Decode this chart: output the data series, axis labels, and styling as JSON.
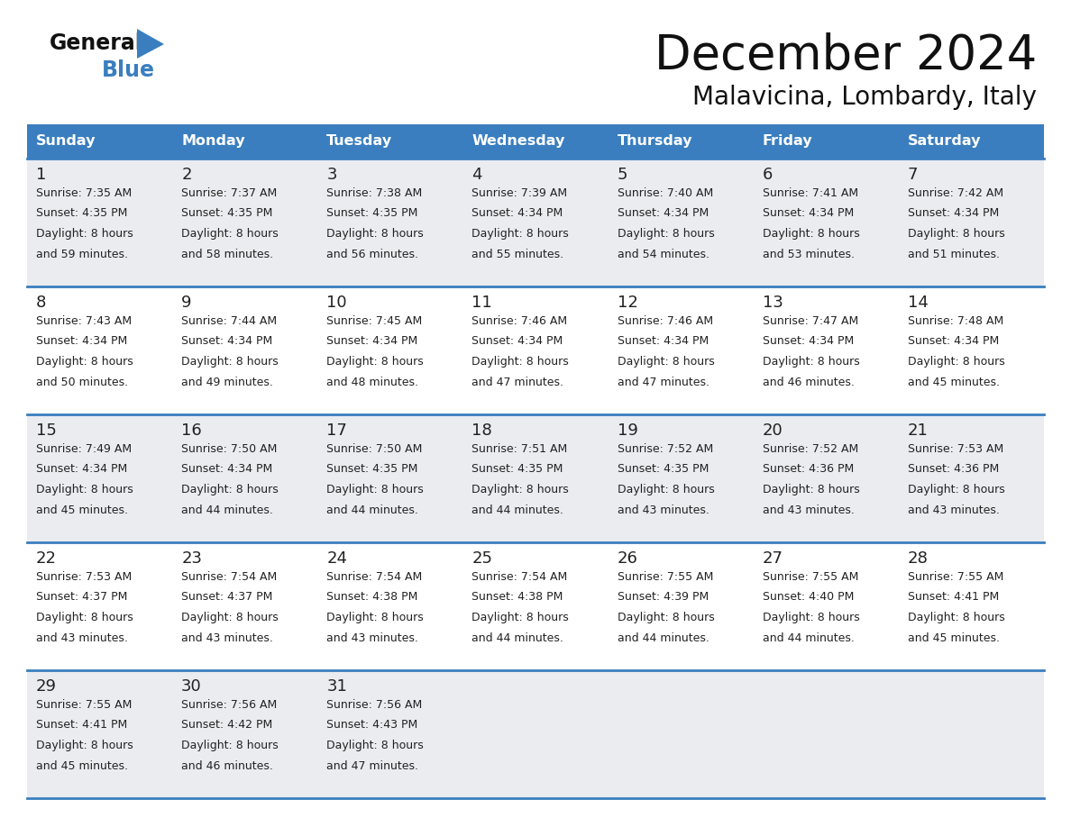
{
  "title": "December 2024",
  "subtitle": "Malavicina, Lombardy, Italy",
  "header_bg": "#3A7EBF",
  "header_text_color": "#FFFFFF",
  "days_of_week": [
    "Sunday",
    "Monday",
    "Tuesday",
    "Wednesday",
    "Thursday",
    "Friday",
    "Saturday"
  ],
  "row_bg_odd": "#EAECF0",
  "row_bg_even": "#FFFFFF",
  "border_color": "#3A7EBF",
  "text_color": "#222222",
  "day_num_color": "#222222",
  "calendar_data": [
    [
      {
        "day": 1,
        "sunrise": "7:35 AM",
        "sunset": "4:35 PM",
        "dl_extra": "59 minutes."
      },
      {
        "day": 2,
        "sunrise": "7:37 AM",
        "sunset": "4:35 PM",
        "dl_extra": "58 minutes."
      },
      {
        "day": 3,
        "sunrise": "7:38 AM",
        "sunset": "4:35 PM",
        "dl_extra": "56 minutes."
      },
      {
        "day": 4,
        "sunrise": "7:39 AM",
        "sunset": "4:34 PM",
        "dl_extra": "55 minutes."
      },
      {
        "day": 5,
        "sunrise": "7:40 AM",
        "sunset": "4:34 PM",
        "dl_extra": "54 minutes."
      },
      {
        "day": 6,
        "sunrise": "7:41 AM",
        "sunset": "4:34 PM",
        "dl_extra": "53 minutes."
      },
      {
        "day": 7,
        "sunrise": "7:42 AM",
        "sunset": "4:34 PM",
        "dl_extra": "51 minutes."
      }
    ],
    [
      {
        "day": 8,
        "sunrise": "7:43 AM",
        "sunset": "4:34 PM",
        "dl_extra": "50 minutes."
      },
      {
        "day": 9,
        "sunrise": "7:44 AM",
        "sunset": "4:34 PM",
        "dl_extra": "49 minutes."
      },
      {
        "day": 10,
        "sunrise": "7:45 AM",
        "sunset": "4:34 PM",
        "dl_extra": "48 minutes."
      },
      {
        "day": 11,
        "sunrise": "7:46 AM",
        "sunset": "4:34 PM",
        "dl_extra": "47 minutes."
      },
      {
        "day": 12,
        "sunrise": "7:46 AM",
        "sunset": "4:34 PM",
        "dl_extra": "47 minutes."
      },
      {
        "day": 13,
        "sunrise": "7:47 AM",
        "sunset": "4:34 PM",
        "dl_extra": "46 minutes."
      },
      {
        "day": 14,
        "sunrise": "7:48 AM",
        "sunset": "4:34 PM",
        "dl_extra": "45 minutes."
      }
    ],
    [
      {
        "day": 15,
        "sunrise": "7:49 AM",
        "sunset": "4:34 PM",
        "dl_extra": "45 minutes."
      },
      {
        "day": 16,
        "sunrise": "7:50 AM",
        "sunset": "4:34 PM",
        "dl_extra": "44 minutes."
      },
      {
        "day": 17,
        "sunrise": "7:50 AM",
        "sunset": "4:35 PM",
        "dl_extra": "44 minutes."
      },
      {
        "day": 18,
        "sunrise": "7:51 AM",
        "sunset": "4:35 PM",
        "dl_extra": "44 minutes."
      },
      {
        "day": 19,
        "sunrise": "7:52 AM",
        "sunset": "4:35 PM",
        "dl_extra": "43 minutes."
      },
      {
        "day": 20,
        "sunrise": "7:52 AM",
        "sunset": "4:36 PM",
        "dl_extra": "43 minutes."
      },
      {
        "day": 21,
        "sunrise": "7:53 AM",
        "sunset": "4:36 PM",
        "dl_extra": "43 minutes."
      }
    ],
    [
      {
        "day": 22,
        "sunrise": "7:53 AM",
        "sunset": "4:37 PM",
        "dl_extra": "43 minutes."
      },
      {
        "day": 23,
        "sunrise": "7:54 AM",
        "sunset": "4:37 PM",
        "dl_extra": "43 minutes."
      },
      {
        "day": 24,
        "sunrise": "7:54 AM",
        "sunset": "4:38 PM",
        "dl_extra": "43 minutes."
      },
      {
        "day": 25,
        "sunrise": "7:54 AM",
        "sunset": "4:38 PM",
        "dl_extra": "44 minutes."
      },
      {
        "day": 26,
        "sunrise": "7:55 AM",
        "sunset": "4:39 PM",
        "dl_extra": "44 minutes."
      },
      {
        "day": 27,
        "sunrise": "7:55 AM",
        "sunset": "4:40 PM",
        "dl_extra": "44 minutes."
      },
      {
        "day": 28,
        "sunrise": "7:55 AM",
        "sunset": "4:41 PM",
        "dl_extra": "45 minutes."
      }
    ],
    [
      {
        "day": 29,
        "sunrise": "7:55 AM",
        "sunset": "4:41 PM",
        "dl_extra": "45 minutes."
      },
      {
        "day": 30,
        "sunrise": "7:56 AM",
        "sunset": "4:42 PM",
        "dl_extra": "46 minutes."
      },
      {
        "day": 31,
        "sunrise": "7:56 AM",
        "sunset": "4:43 PM",
        "dl_extra": "47 minutes."
      },
      null,
      null,
      null,
      null
    ]
  ]
}
